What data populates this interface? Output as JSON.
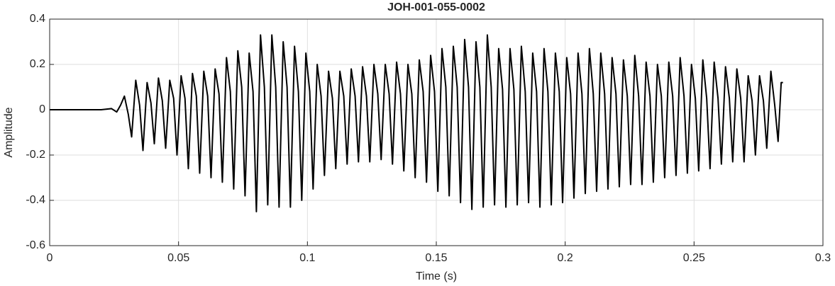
{
  "chart_data": {
    "type": "line",
    "title": "JOH-001-055-0002",
    "x_label": "Time (s)",
    "y_label": "Amplitude",
    "x": [
      0,
      0.02,
      0.024,
      0.026,
      0.0275,
      0.029,
      0.0305,
      0.0318,
      0.0334,
      0.0349,
      0.0362,
      0.0378,
      0.0393,
      0.0406,
      0.0422,
      0.0437,
      0.045,
      0.0466,
      0.0481,
      0.0494,
      0.051,
      0.0525,
      0.0538,
      0.0554,
      0.0569,
      0.0582,
      0.0598,
      0.0613,
      0.0626,
      0.0642,
      0.0657,
      0.067,
      0.0686,
      0.0701,
      0.0714,
      0.073,
      0.0745,
      0.0758,
      0.0774,
      0.0789,
      0.0802,
      0.0818,
      0.0833,
      0.0846,
      0.0862,
      0.0877,
      0.089,
      0.0906,
      0.0921,
      0.0934,
      0.095,
      0.0965,
      0.0978,
      0.0994,
      0.1009,
      0.1022,
      0.1038,
      0.1053,
      0.1066,
      0.1082,
      0.1097,
      0.111,
      0.1126,
      0.1141,
      0.1154,
      0.117,
      0.1185,
      0.1198,
      0.1214,
      0.1229,
      0.1242,
      0.1258,
      0.1273,
      0.1286,
      0.1302,
      0.1317,
      0.133,
      0.1346,
      0.1361,
      0.1374,
      0.139,
      0.1405,
      0.1418,
      0.1434,
      0.1449,
      0.1462,
      0.1478,
      0.1493,
      0.1506,
      0.1522,
      0.1537,
      0.155,
      0.1566,
      0.1581,
      0.1594,
      0.161,
      0.1625,
      0.1638,
      0.1654,
      0.1669,
      0.1682,
      0.1698,
      0.1713,
      0.1726,
      0.1742,
      0.1757,
      0.177,
      0.1786,
      0.1801,
      0.1814,
      0.183,
      0.1845,
      0.1858,
      0.1874,
      0.1889,
      0.1902,
      0.1918,
      0.1933,
      0.1946,
      0.1962,
      0.1977,
      0.199,
      0.2006,
      0.2021,
      0.2034,
      0.205,
      0.2065,
      0.2078,
      0.2094,
      0.2109,
      0.2122,
      0.2138,
      0.2153,
      0.2166,
      0.2182,
      0.2197,
      0.221,
      0.2226,
      0.2241,
      0.2254,
      0.227,
      0.2285,
      0.2298,
      0.2314,
      0.2329,
      0.2342,
      0.2358,
      0.2373,
      0.2386,
      0.2402,
      0.2417,
      0.243,
      0.2446,
      0.2461,
      0.2474,
      0.249,
      0.2505,
      0.2518,
      0.2534,
      0.2549,
      0.2562,
      0.2578,
      0.2593,
      0.2606,
      0.2622,
      0.2637,
      0.265,
      0.2666,
      0.2681,
      0.2694,
      0.271,
      0.2725,
      0.2738,
      0.2754,
      0.2769,
      0.2782,
      0.2798,
      0.2813,
      0.2826,
      0.2838,
      0.2845
    ],
    "values": [
      0,
      0,
      0.005,
      -0.01,
      0.02,
      0.06,
      -0.02,
      -0.12,
      0.13,
      0.02,
      -0.18,
      0.12,
      0.03,
      -0.15,
      0.14,
      0.04,
      -0.17,
      0.13,
      0.05,
      -0.2,
      0.15,
      0.05,
      -0.26,
      0.16,
      0.06,
      -0.28,
      0.17,
      0.06,
      -0.3,
      0.18,
      0.07,
      -0.32,
      0.23,
      0.08,
      -0.35,
      0.26,
      0.1,
      -0.38,
      0.25,
      0.08,
      -0.45,
      0.33,
      0.1,
      -0.42,
      0.33,
      0.1,
      -0.43,
      0.3,
      0.1,
      -0.43,
      0.28,
      0.08,
      -0.4,
      0.25,
      0.08,
      -0.35,
      0.2,
      0.06,
      -0.29,
      0.17,
      0.05,
      -0.26,
      0.17,
      0.06,
      -0.24,
      0.18,
      0.06,
      -0.23,
      0.19,
      0.06,
      -0.23,
      0.2,
      0.07,
      -0.22,
      0.2,
      0.07,
      -0.24,
      0.21,
      0.07,
      -0.27,
      0.2,
      0.07,
      -0.3,
      0.22,
      0.08,
      -0.32,
      0.24,
      0.08,
      -0.36,
      0.27,
      0.1,
      -0.38,
      0.28,
      0.1,
      -0.41,
      0.31,
      0.1,
      -0.44,
      0.3,
      0.1,
      -0.43,
      0.33,
      0.1,
      -0.42,
      0.27,
      0.09,
      -0.43,
      0.27,
      0.09,
      -0.42,
      0.28,
      0.08,
      -0.41,
      0.25,
      0.08,
      -0.43,
      0.27,
      0.08,
      -0.42,
      0.25,
      0.08,
      -0.41,
      0.23,
      0.07,
      -0.39,
      0.25,
      0.07,
      -0.37,
      0.27,
      0.07,
      -0.36,
      0.25,
      0.07,
      -0.35,
      0.23,
      0.07,
      -0.34,
      0.22,
      0.06,
      -0.33,
      0.24,
      0.06,
      -0.33,
      0.21,
      0.06,
      -0.32,
      0.2,
      0.06,
      -0.3,
      0.21,
      0.06,
      -0.29,
      0.23,
      0.06,
      -0.28,
      0.2,
      0.05,
      -0.27,
      0.22,
      0.05,
      -0.26,
      0.21,
      0.05,
      -0.24,
      0.19,
      0.05,
      -0.23,
      0.18,
      0.05,
      -0.23,
      0.15,
      0.04,
      -0.2,
      0.15,
      0.04,
      -0.17,
      0.17,
      0.02,
      -0.14,
      0.12,
      0.12
    ],
    "color": "#000000",
    "xlim": [
      0,
      0.3
    ],
    "xticks": [
      0,
      0.05,
      0.1,
      0.15,
      0.2,
      0.25,
      0.3
    ],
    "ylim": [
      -0.6,
      0.4
    ],
    "yticks": [
      -0.6,
      -0.4,
      -0.2,
      0,
      0.2,
      0.4
    ],
    "grid": true
  }
}
